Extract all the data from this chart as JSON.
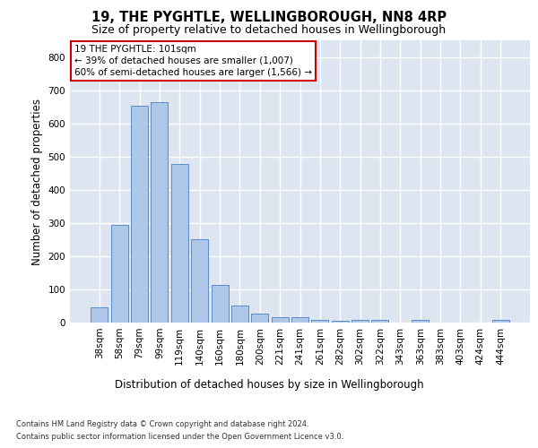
{
  "title1": "19, THE PYGHTLE, WELLINGBOROUGH, NN8 4RP",
  "title2": "Size of property relative to detached houses in Wellingborough",
  "xlabel": "Distribution of detached houses by size in Wellingborough",
  "ylabel": "Number of detached properties",
  "categories": [
    "38sqm",
    "58sqm",
    "79sqm",
    "99sqm",
    "119sqm",
    "140sqm",
    "160sqm",
    "180sqm",
    "200sqm",
    "221sqm",
    "241sqm",
    "261sqm",
    "282sqm",
    "302sqm",
    "322sqm",
    "343sqm",
    "363sqm",
    "383sqm",
    "403sqm",
    "424sqm",
    "444sqm"
  ],
  "values": [
    45,
    293,
    653,
    665,
    478,
    252,
    113,
    50,
    27,
    15,
    15,
    7,
    5,
    8,
    8,
    0,
    8,
    0,
    0,
    0,
    8
  ],
  "bar_color": "#aec6e8",
  "bar_edge_color": "#5b8cc8",
  "annotation_box_text": "19 THE PYGHTLE: 101sqm\n← 39% of detached houses are smaller (1,007)\n60% of semi-detached houses are larger (1,566) →",
  "annotation_box_color": "#ffffff",
  "annotation_box_edge_color": "#cc0000",
  "footer1": "Contains HM Land Registry data © Crown copyright and database right 2024.",
  "footer2": "Contains public sector information licensed under the Open Government Licence v3.0.",
  "ylim": [
    0,
    850
  ],
  "yticks": [
    0,
    100,
    200,
    300,
    400,
    500,
    600,
    700,
    800
  ],
  "bg_color": "#dde6f0",
  "grid_color": "#ffffff",
  "title1_fontsize": 10.5,
  "title2_fontsize": 9,
  "tick_fontsize": 7.5,
  "ylabel_fontsize": 8.5,
  "xlabel_fontsize": 8.5,
  "footer_fontsize": 6.0,
  "annotation_fontsize": 7.5
}
